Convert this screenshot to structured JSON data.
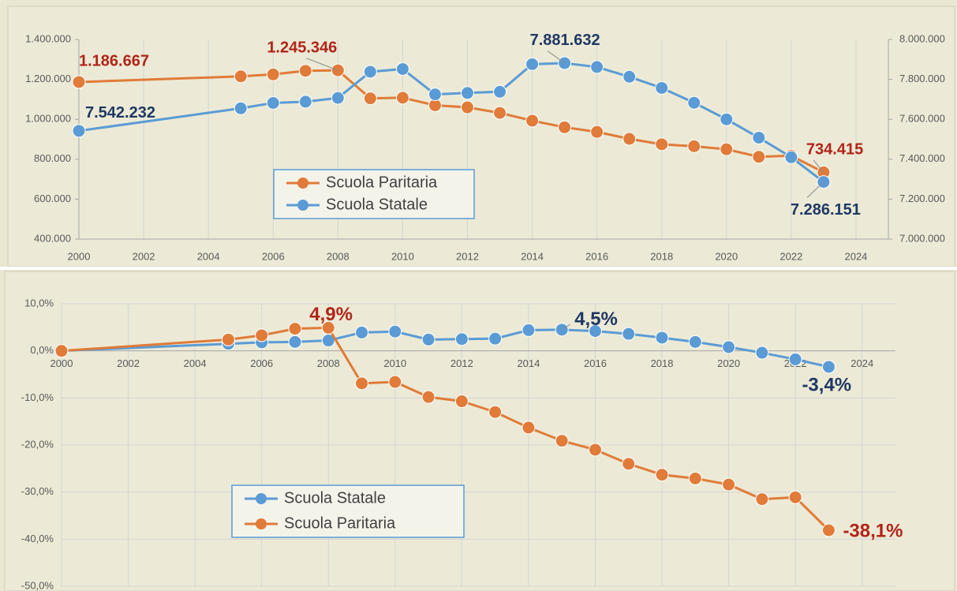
{
  "chart_data": [
    {
      "type": "line",
      "x": [
        2000,
        2005,
        2006,
        2007,
        2008,
        2009,
        2010,
        2011,
        2012,
        2013,
        2014,
        2015,
        2016,
        2017,
        2018,
        2019,
        2020,
        2021,
        2022,
        2023
      ],
      "xlim": [
        2000,
        2025
      ],
      "xticks": [
        2000,
        2002,
        2004,
        2006,
        2008,
        2010,
        2012,
        2014,
        2016,
        2018,
        2020,
        2022,
        2024
      ],
      "ylim": [
        400000,
        1400000
      ],
      "yticks": [
        {
          "value": 400000,
          "label": "400.000"
        },
        {
          "value": 600000,
          "label": "600.000"
        },
        {
          "value": 800000,
          "label": "800.000"
        },
        {
          "value": 1000000,
          "label": "1.000.000"
        },
        {
          "value": 1200000,
          "label": "1.200.000"
        },
        {
          "value": 1400000,
          "label": "1.400.000"
        }
      ],
      "y2lim": [
        7000000,
        8000000
      ],
      "y2ticks": [
        {
          "value": 7000000,
          "label": "7.000.000"
        },
        {
          "value": 7200000,
          "label": "7.200.000"
        },
        {
          "value": 7400000,
          "label": "7.400.000"
        },
        {
          "value": 7600000,
          "label": "7.600.000"
        },
        {
          "value": 7800000,
          "label": "7.800.000"
        },
        {
          "value": 8000000,
          "label": "8.000.000"
        }
      ],
      "xgrid": true,
      "ygrid": false,
      "series": [
        {
          "name": "Scuola Paritaria",
          "color": "#e07b39",
          "label_color": "#b02418",
          "values": [
            1186667,
            1215000,
            1225000,
            1243000,
            1245346,
            1105000,
            1108000,
            1070000,
            1060000,
            1032000,
            993000,
            960000,
            937000,
            902000,
            875000,
            865000,
            850000,
            812000,
            818000,
            734415
          ],
          "value_labels": [
            "1.186.667",
            null,
            null,
            null,
            "1.245.346",
            null,
            null,
            null,
            null,
            null,
            null,
            null,
            null,
            null,
            null,
            null,
            null,
            null,
            null,
            "734.415"
          ]
        },
        {
          "name": "Scuola Statale",
          "color": "#5b9bd5",
          "label_color": "#1f3864",
          "axis": "y2",
          "values": [
            7542232,
            7655000,
            7682000,
            7688000,
            7707000,
            7838000,
            7852000,
            7725000,
            7732000,
            7738000,
            7876000,
            7881632,
            7862000,
            7813000,
            7757000,
            7683000,
            7600000,
            7508000,
            7410000,
            7286151
          ],
          "value_labels": [
            "7.542.232",
            null,
            null,
            null,
            null,
            null,
            null,
            null,
            null,
            null,
            null,
            "7.881.632",
            null,
            null,
            null,
            null,
            null,
            null,
            null,
            "7.286.151"
          ]
        }
      ]
    },
    {
      "type": "line",
      "x": [
        2000,
        2005,
        2006,
        2007,
        2008,
        2009,
        2010,
        2011,
        2012,
        2013,
        2014,
        2015,
        2016,
        2017,
        2018,
        2019,
        2020,
        2021,
        2022,
        2023
      ],
      "xlim": [
        2000,
        2025
      ],
      "xticks": [
        2000,
        2002,
        2004,
        2006,
        2008,
        2010,
        2012,
        2014,
        2016,
        2018,
        2020,
        2022,
        2024
      ],
      "ylim": [
        -50,
        10
      ],
      "yticks": [
        {
          "value": -50,
          "label": "-50,0%"
        },
        {
          "value": -40,
          "label": "-40,0%"
        },
        {
          "value": -30,
          "label": "-30,0%"
        },
        {
          "value": -20,
          "label": "-20,0%"
        },
        {
          "value": -10,
          "label": "-10,0%"
        },
        {
          "value": 0,
          "label": "0,0%"
        },
        {
          "value": 10,
          "label": "10,0%"
        }
      ],
      "xgrid": true,
      "ygrid": true,
      "series": [
        {
          "name": "Scuola Statale",
          "color": "#5b9bd5",
          "label_color": "#1f3864",
          "values": [
            0,
            1.5,
            1.8,
            1.9,
            2.2,
            3.9,
            4.1,
            2.4,
            2.5,
            2.6,
            4.4,
            4.5,
            4.2,
            3.6,
            2.8,
            1.9,
            0.8,
            -0.4,
            -1.8,
            -3.4
          ],
          "value_labels": [
            null,
            null,
            null,
            null,
            null,
            null,
            null,
            null,
            null,
            null,
            null,
            "4,5%",
            null,
            null,
            null,
            null,
            null,
            null,
            null,
            "-3,4%"
          ]
        },
        {
          "name": "Scuola Paritaria",
          "color": "#e07b39",
          "label_color": "#b02418",
          "values": [
            0,
            2.4,
            3.3,
            4.7,
            4.9,
            -6.9,
            -6.6,
            -9.8,
            -10.7,
            -13.0,
            -16.3,
            -19.1,
            -21.0,
            -24.0,
            -26.3,
            -27.1,
            -28.4,
            -31.5,
            -31.1,
            -38.1
          ],
          "value_labels": [
            null,
            null,
            null,
            null,
            "4,9%",
            null,
            null,
            null,
            null,
            null,
            null,
            null,
            null,
            null,
            null,
            null,
            null,
            null,
            null,
            "-38,1%"
          ]
        }
      ]
    }
  ]
}
